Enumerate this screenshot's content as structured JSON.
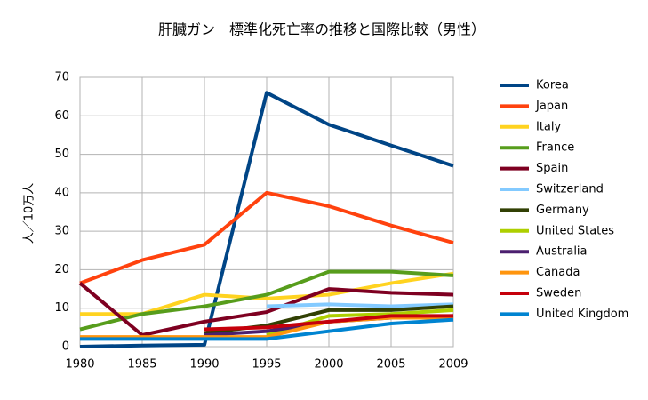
{
  "chart_data": {
    "type": "line",
    "title": "肝臓ガン　標準化死亡率の推移と国際比較（男性）",
    "y_label": "人／10万人",
    "categories": [
      "1980",
      "1985",
      "1990",
      "1995",
      "2000",
      "2005",
      "2009"
    ],
    "ylim": [
      0,
      70
    ],
    "yticks": [
      0,
      10,
      20,
      30,
      40,
      50,
      60,
      70
    ],
    "grid": true,
    "legend": "right",
    "series": [
      {
        "name": "Korea",
        "color": "#004586",
        "values": [
          0,
          0.3,
          0.5,
          66,
          57.7,
          52.3,
          47
        ]
      },
      {
        "name": "Japan",
        "color": "#ff420e",
        "values": [
          16.5,
          22.5,
          26.5,
          40,
          36.5,
          31.5,
          27
        ]
      },
      {
        "name": "Italy",
        "color": "#ffd320",
        "values": [
          8.5,
          8.5,
          13.5,
          12.5,
          13.5,
          16.5,
          19
        ]
      },
      {
        "name": "France",
        "color": "#579d1c",
        "values": [
          4.5,
          8.5,
          10.5,
          13.5,
          19.5,
          19.5,
          18.5
        ]
      },
      {
        "name": "Spain",
        "color": "#7e0021",
        "values": [
          16.5,
          3,
          6.5,
          9,
          15,
          14,
          13.5
        ]
      },
      {
        "name": "Switzerland",
        "color": "#83caff",
        "values": [
          null,
          null,
          null,
          10.5,
          11,
          10.5,
          11
        ]
      },
      {
        "name": "Germany",
        "color": "#314004",
        "values": [
          null,
          null,
          3.5,
          5.5,
          9.5,
          9.5,
          10.5
        ]
      },
      {
        "name": "United States",
        "color": "#aecf00",
        "values": [
          null,
          null,
          null,
          3,
          8,
          8.5,
          9.5
        ]
      },
      {
        "name": "Australia",
        "color": "#4b1f6f",
        "values": [
          null,
          null,
          3,
          4,
          6.5,
          7.5,
          8
        ]
      },
      {
        "name": "Canada",
        "color": "#ff950e",
        "values": [
          2.5,
          2.5,
          2.5,
          2.5,
          6.5,
          7.5,
          7.5
        ]
      },
      {
        "name": "Sweden",
        "color": "#c5000b",
        "values": [
          null,
          null,
          4.5,
          5,
          6.5,
          8,
          8
        ]
      },
      {
        "name": "United Kingdom",
        "color": "#0084d1",
        "values": [
          2,
          2,
          2,
          2,
          4,
          6,
          7
        ]
      }
    ]
  }
}
